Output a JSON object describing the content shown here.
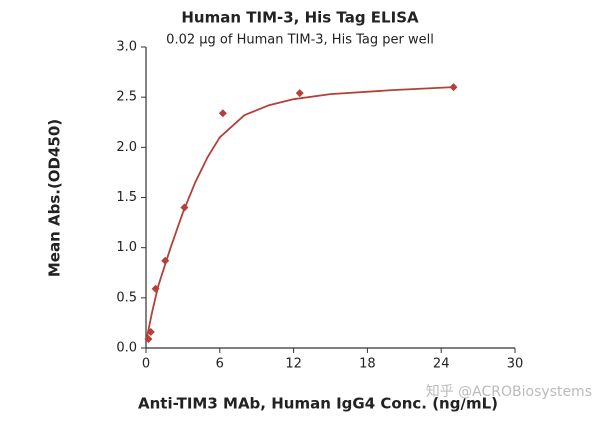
{
  "chart_data": {
    "type": "scatter",
    "title": "Human TIM-3, His Tag ELISA",
    "subtitle": "0.02 μg of Human TIM-3, His Tag per well",
    "x_label": "Anti-TIM3 MAb, Human IgG4 Conc. (ng/mL)",
    "y_label": "Mean Abs.(OD450)",
    "watermark": "知乎 @ACROBiosystems",
    "xlim": [
      0,
      30
    ],
    "xticks": [
      0,
      6,
      12,
      18,
      24,
      30
    ],
    "ylim": [
      0,
      3
    ],
    "yticks": [
      {
        "value": 0,
        "label": "0.0"
      },
      0.5,
      {
        "value": 1,
        "label": "1.0"
      },
      1.5,
      {
        "value": 2,
        "label": "2.0"
      },
      2.5,
      {
        "value": 3,
        "label": "3.0"
      }
    ],
    "series": [
      {
        "mode": "markers",
        "color": "#b5403a",
        "x": [
          0.195,
          0.39,
          0.78,
          1.5625,
          3.125,
          6.25,
          12.5,
          25
        ],
        "values": [
          0.09,
          0.16,
          0.59,
          0.87,
          1.4,
          2.34,
          2.54,
          2.6
        ]
      },
      {
        "mode": "line",
        "color": "#b5403a",
        "x": [
          0,
          0.5,
          1,
          2,
          3,
          4,
          5,
          6,
          8,
          10,
          12,
          15,
          20,
          25
        ],
        "values": [
          0.06,
          0.36,
          0.62,
          1.0,
          1.35,
          1.65,
          1.9,
          2.1,
          2.32,
          2.42,
          2.48,
          2.53,
          2.57,
          2.6
        ]
      }
    ]
  }
}
